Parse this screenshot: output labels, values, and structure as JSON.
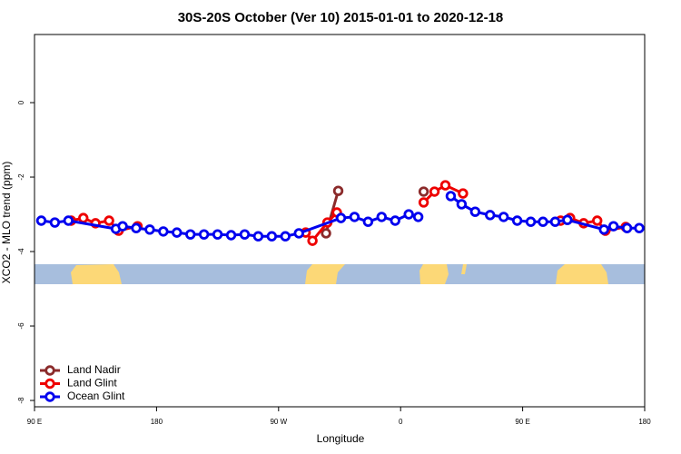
{
  "chart_data": {
    "type": "line",
    "title": "30S-20S October (Ver 10)   2015-01-01 to 2020-12-18",
    "x_label": "Longitude",
    "y_label": "XCO2 - MLO trend (ppm)",
    "xlim": [
      90,
      540
    ],
    "ylim": [
      -8.17,
      1.83
    ],
    "xticks": [
      {
        "value": 90,
        "label": "90 E"
      },
      180,
      {
        "value": 270,
        "label": "90 W"
      },
      {
        "value": 360,
        "label": "0"
      },
      {
        "value": 450,
        "label": "90 E"
      },
      {
        "value": 540,
        "label": "180"
      }
    ],
    "yticks": [
      0,
      -2,
      -4,
      -6,
      -8
    ],
    "legend": "bottom-left",
    "series": [
      {
        "name": "Land Nadir",
        "color": "#8b2b2b",
        "x": [
          305,
          314,
          345,
          377
        ],
        "values": [
          -3.51,
          -2.37,
          null,
          -2.39
        ]
      },
      {
        "name": "Land Glint",
        "color": "#ee0000",
        "x": [
          117,
          126,
          135,
          145,
          152,
          166,
          230,
          290,
          295,
          306,
          313,
          345,
          377,
          385,
          393,
          406,
          440,
          478,
          485,
          495,
          505,
          511,
          526
        ],
        "values": [
          -3.17,
          -3.1,
          -3.24,
          -3.17,
          -3.44,
          -3.32,
          null,
          -3.49,
          -3.71,
          -3.22,
          -2.95,
          null,
          -2.68,
          -2.39,
          -2.22,
          -2.44,
          null,
          -3.17,
          -3.1,
          -3.24,
          -3.17,
          -3.44,
          -3.34
        ]
      },
      {
        "name": "Ocean Glint",
        "color": "#0000ee",
        "x": [
          95,
          105,
          115,
          150,
          155,
          165,
          175,
          185,
          195,
          205,
          215,
          225,
          235,
          245,
          255,
          265,
          275,
          285,
          316,
          326,
          336,
          346,
          356,
          366,
          373,
          385,
          397,
          405,
          415,
          426,
          436,
          446,
          456,
          465,
          474,
          483,
          510,
          517,
          527,
          536
        ],
        "values": [
          -3.17,
          -3.22,
          -3.17,
          -3.39,
          -3.32,
          -3.37,
          -3.41,
          -3.46,
          -3.49,
          -3.54,
          -3.54,
          -3.54,
          -3.56,
          -3.54,
          -3.59,
          -3.59,
          -3.59,
          -3.51,
          -3.1,
          -3.07,
          -3.2,
          -3.07,
          -3.17,
          -3.0,
          -3.07,
          null,
          -2.51,
          -2.73,
          -2.93,
          -3.02,
          -3.07,
          -3.17,
          -3.2,
          -3.2,
          -3.2,
          -3.15,
          -3.41,
          -3.32,
          -3.37,
          -3.37
        ]
      }
    ]
  }
}
